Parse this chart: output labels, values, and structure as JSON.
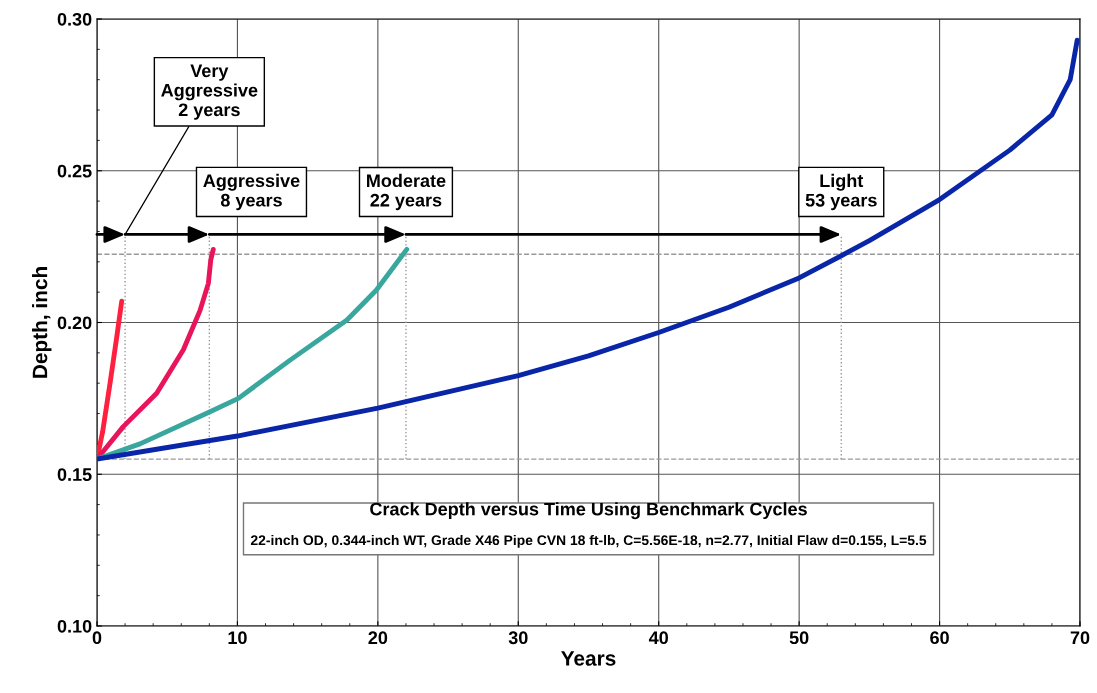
{
  "chart_data": {
    "type": "line",
    "xlabel": "Years",
    "ylabel": "Depth, inch",
    "title": "Crack Depth versus Time Using Benchmark Cycles",
    "subtitle": "22-inch OD, 0.344-inch WT, Grade X46 Pipe CVN 18 ft-lb, C=5.56E-18, n=2.77, Initial Flaw d=0.155, L=5.5",
    "xlim": [
      0,
      70
    ],
    "xticks": [
      0,
      10,
      20,
      30,
      40,
      50,
      60,
      70
    ],
    "ylim": [
      0.1,
      0.3
    ],
    "yticks": [
      {
        "value": 0.1,
        "label": "0.10"
      },
      {
        "value": 0.15,
        "label": "0.15"
      },
      {
        "value": 0.2,
        "label": "0.20"
      },
      {
        "value": 0.25,
        "label": "0.25"
      },
      {
        "value": 0.3,
        "label": "0.30"
      }
    ],
    "grid": true,
    "legend": false,
    "marker": "none",
    "line_style": "solid",
    "series": [
      {
        "color": "#ff2040",
        "x": [
          0,
          0.4,
          0.93,
          1.4,
          1.76
        ],
        "values": [
          0.155,
          0.164,
          0.18,
          0.195,
          0.207
        ]
      },
      {
        "color": "#e8155a",
        "x": [
          0,
          1.87,
          4.25,
          6.15,
          7.34,
          7.93,
          8.1,
          8.28
        ],
        "values": [
          0.155,
          0.1657,
          0.1767,
          0.191,
          0.204,
          0.2129,
          0.2206,
          0.2241
        ]
      },
      {
        "color": "#3aa79e",
        "x": [
          0,
          3.06,
          8.05,
          10.07,
          13.75,
          17.8,
          19.9,
          22.06
        ],
        "values": [
          0.155,
          0.16,
          0.1706,
          0.175,
          0.1876,
          0.2008,
          0.2107,
          0.2241
        ]
      },
      {
        "color": "#0a26a8",
        "x": [
          0,
          10,
          20,
          30,
          35,
          40,
          45,
          50,
          53,
          55,
          60,
          65,
          68,
          69.3,
          69.8
        ],
        "values": [
          0.155,
          0.1626,
          0.1718,
          0.1825,
          0.189,
          0.1967,
          0.205,
          0.2147,
          0.222,
          0.227,
          0.2405,
          0.2568,
          0.2684,
          0.28,
          0.293
        ]
      }
    ],
    "ref_lines": [
      {
        "axis": "y",
        "value": 0.155,
        "color": "#999999",
        "line_style": "dashed"
      },
      {
        "axis": "y",
        "value": 0.2225,
        "color": "#999999",
        "line_style": "dashed"
      },
      {
        "axis": "x",
        "value": 2,
        "color": "#999999",
        "line_style": "dotted"
      },
      {
        "axis": "x",
        "value": 8,
        "color": "#999999",
        "line_style": "dotted"
      },
      {
        "axis": "x",
        "value": 22,
        "color": "#999999",
        "line_style": "dotted"
      },
      {
        "axis": "x",
        "value": 53,
        "color": "#999999",
        "line_style": "dotted"
      }
    ],
    "annotations": [
      {
        "text": "Very\nAggressive\n2 years",
        "x": 2,
        "y": 0.229
      },
      {
        "text": "Aggressive\n8 years",
        "x": 8,
        "y": 0.229
      },
      {
        "text": "Moderate\n22 years",
        "x": 22,
        "y": 0.229
      },
      {
        "text": "Light\n53 years",
        "x": 53,
        "y": 0.229
      }
    ]
  }
}
